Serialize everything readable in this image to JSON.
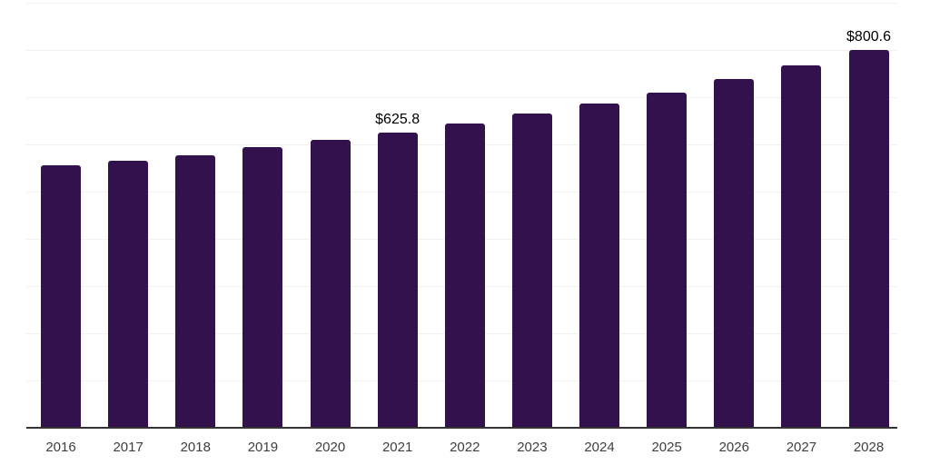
{
  "chart_data": {
    "type": "bar",
    "title": "",
    "xlabel": "",
    "ylabel": "",
    "categories": [
      "2016",
      "2017",
      "2018",
      "2019",
      "2020",
      "2021",
      "2022",
      "2023",
      "2024",
      "2025",
      "2026",
      "2027",
      "2028"
    ],
    "values": [
      556,
      566,
      576.5,
      593.7,
      610.1,
      625.8,
      644,
      665.6,
      686.6,
      710.3,
      738.2,
      767.2,
      800.6
    ],
    "value_labels": {
      "2021": "$625.8",
      "2028": "$800.6"
    },
    "ylim": [
      0,
      900
    ],
    "gridline_step_value": 100,
    "grid": "horizontal-only",
    "legend": "none",
    "y_tick_labels_visible": false,
    "colors": {
      "bar": "#32114d",
      "gridline": "#f2f2f2",
      "axis_line": "#333333",
      "tick_label": "#3f3f3f",
      "value_label": "#000000",
      "background": "#ffffff"
    }
  }
}
